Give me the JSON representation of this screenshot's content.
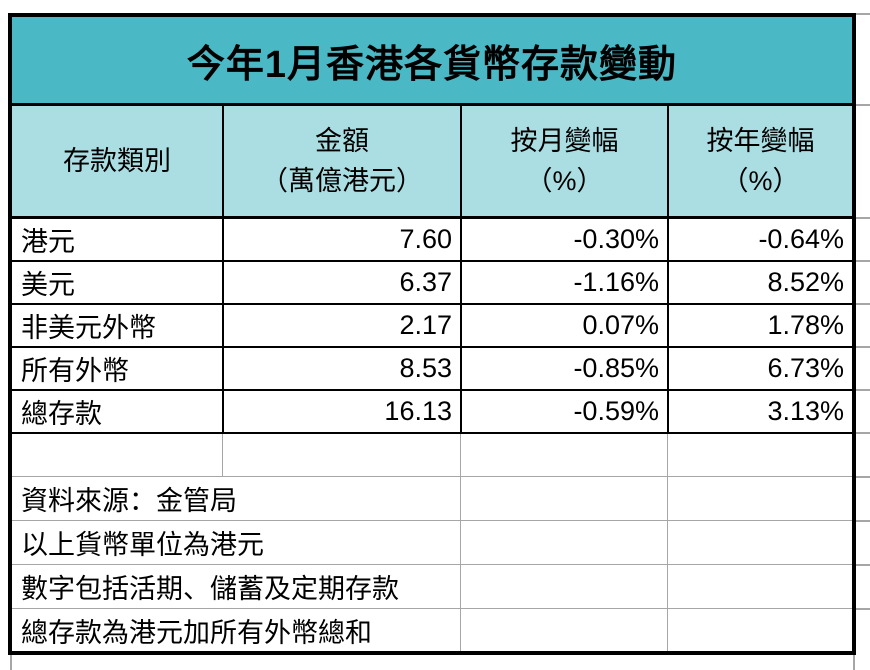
{
  "title": "今年1月香港各貨幣存款變動",
  "colors": {
    "title_background": "#4BB9C5",
    "header_background": "#AADEE2",
    "gridline_gray": "#A6A6A6",
    "border_black": "#000000"
  },
  "table": {
    "headers": [
      {
        "line1": "存款類別",
        "line2": ""
      },
      {
        "line1": "金額",
        "line2": "（萬億港元）"
      },
      {
        "line1": "按月變幅",
        "line2": "（%）"
      },
      {
        "line1": "按年變幅",
        "line2": "（%）"
      }
    ],
    "rows": [
      {
        "label": "港元",
        "amount": "7.60",
        "mom": "-0.30%",
        "yoy": "-0.64%"
      },
      {
        "label": "美元",
        "amount": "6.37",
        "mom": "-1.16%",
        "yoy": "8.52%"
      },
      {
        "label": "非美元外幣",
        "amount": "2.17",
        "mom": "0.07%",
        "yoy": "1.78%"
      },
      {
        "label": "所有外幣",
        "amount": "8.53",
        "mom": "-0.85%",
        "yoy": "6.73%"
      },
      {
        "label": "總存款",
        "amount": "16.13",
        "mom": "-0.59%",
        "yoy": "3.13%"
      }
    ],
    "notes": [
      "資料來源：金管局",
      "以上貨幣單位為港元",
      "數字包括活期、儲蓄及定期存款",
      "總存款為港元加所有外幣總和"
    ]
  }
}
